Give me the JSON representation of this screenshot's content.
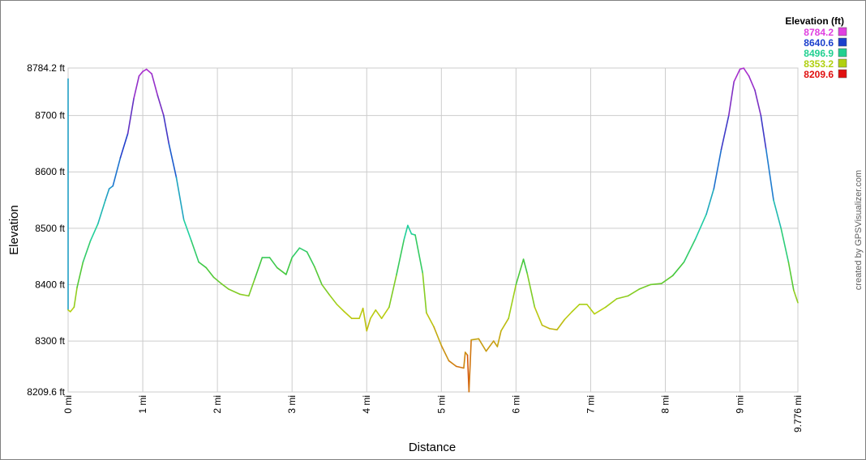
{
  "chart_data": {
    "type": "line",
    "xlabel": "Distance",
    "ylabel": "Elevation",
    "xlim": [
      0,
      9.776
    ],
    "ylim": [
      8209.6,
      8784.2
    ],
    "grid": true,
    "y_ticks": [
      {
        "value": 8209.6,
        "label": "8209.6 ft"
      },
      {
        "value": 8300,
        "label": "8300 ft"
      },
      {
        "value": 8400,
        "label": "8400 ft"
      },
      {
        "value": 8500,
        "label": "8500 ft"
      },
      {
        "value": 8600,
        "label": "8600 ft"
      },
      {
        "value": 8700,
        "label": "8700 ft"
      },
      {
        "value": 8784.2,
        "label": "8784.2 ft"
      }
    ],
    "x_ticks": [
      {
        "value": 0,
        "label": "0 mi"
      },
      {
        "value": 1,
        "label": "1 mi"
      },
      {
        "value": 2,
        "label": "2 mi"
      },
      {
        "value": 3,
        "label": "3 mi"
      },
      {
        "value": 4,
        "label": "4 mi"
      },
      {
        "value": 5,
        "label": "5 mi"
      },
      {
        "value": 6,
        "label": "6 mi"
      },
      {
        "value": 7,
        "label": "7 mi"
      },
      {
        "value": 8,
        "label": "8 mi"
      },
      {
        "value": 9,
        "label": "9 mi"
      },
      {
        "value": 9.776,
        "label": "9.776 mi"
      }
    ],
    "legend": {
      "title": "Elevation (ft)",
      "placement": "top-right",
      "entries": [
        {
          "label": "8784.2",
          "color": "#e040e0"
        },
        {
          "label": "8640.6",
          "color": "#1a3fcc"
        },
        {
          "label": "8496.9",
          "color": "#20d090"
        },
        {
          "label": "8353.2",
          "color": "#b0d010"
        },
        {
          "label": "8209.6",
          "color": "#e01010"
        }
      ]
    },
    "color_stops": [
      {
        "value": 8209.6,
        "color": "#e01010"
      },
      {
        "value": 8260,
        "color": "#d08010"
      },
      {
        "value": 8353.2,
        "color": "#b8d010"
      },
      {
        "value": 8430,
        "color": "#40c840"
      },
      {
        "value": 8496.9,
        "color": "#20d0a0"
      },
      {
        "value": 8580,
        "color": "#2090d0"
      },
      {
        "value": 8640.6,
        "color": "#1a3fcc"
      },
      {
        "value": 8710,
        "color": "#7030c0"
      },
      {
        "value": 8784.2,
        "color": "#b030d0"
      }
    ],
    "series": [
      {
        "points": [
          [
            0,
            8765
          ],
          [
            0,
            8355
          ],
          [
            0.03,
            8352
          ],
          [
            0.08,
            8360
          ],
          [
            0.12,
            8395
          ],
          [
            0.2,
            8440
          ],
          [
            0.3,
            8478
          ],
          [
            0.4,
            8508
          ],
          [
            0.5,
            8550
          ],
          [
            0.55,
            8570
          ],
          [
            0.6,
            8575
          ],
          [
            0.7,
            8625
          ],
          [
            0.8,
            8668
          ],
          [
            0.88,
            8730
          ],
          [
            0.95,
            8770
          ],
          [
            1.0,
            8778
          ],
          [
            1.05,
            8782
          ],
          [
            1.12,
            8774
          ],
          [
            1.2,
            8735
          ],
          [
            1.28,
            8700
          ],
          [
            1.35,
            8650
          ],
          [
            1.45,
            8590
          ],
          [
            1.55,
            8515
          ],
          [
            1.65,
            8478
          ],
          [
            1.75,
            8440
          ],
          [
            1.85,
            8430
          ],
          [
            1.95,
            8413
          ],
          [
            2.05,
            8402
          ],
          [
            2.15,
            8392
          ],
          [
            2.3,
            8383
          ],
          [
            2.42,
            8380
          ],
          [
            2.5,
            8410
          ],
          [
            2.6,
            8448
          ],
          [
            2.7,
            8448
          ],
          [
            2.8,
            8430
          ],
          [
            2.92,
            8418
          ],
          [
            3.0,
            8448
          ],
          [
            3.1,
            8465
          ],
          [
            3.2,
            8458
          ],
          [
            3.3,
            8432
          ],
          [
            3.4,
            8400
          ],
          [
            3.5,
            8382
          ],
          [
            3.6,
            8365
          ],
          [
            3.7,
            8352
          ],
          [
            3.8,
            8340
          ],
          [
            3.9,
            8340
          ],
          [
            3.95,
            8358
          ],
          [
            4.0,
            8318
          ],
          [
            4.05,
            8340
          ],
          [
            4.12,
            8355
          ],
          [
            4.2,
            8340
          ],
          [
            4.3,
            8360
          ],
          [
            4.4,
            8418
          ],
          [
            4.5,
            8480
          ],
          [
            4.55,
            8505
          ],
          [
            4.6,
            8490
          ],
          [
            4.65,
            8488
          ],
          [
            4.75,
            8420
          ],
          [
            4.8,
            8350
          ],
          [
            4.9,
            8325
          ],
          [
            5.0,
            8292
          ],
          [
            5.1,
            8265
          ],
          [
            5.2,
            8255
          ],
          [
            5.3,
            8252
          ],
          [
            5.32,
            8280
          ],
          [
            5.35,
            8275
          ],
          [
            5.37,
            8210
          ],
          [
            5.4,
            8302
          ],
          [
            5.5,
            8304
          ],
          [
            5.6,
            8282
          ],
          [
            5.7,
            8300
          ],
          [
            5.75,
            8290
          ],
          [
            5.8,
            8318
          ],
          [
            5.9,
            8340
          ],
          [
            6.0,
            8400
          ],
          [
            6.1,
            8445
          ],
          [
            6.15,
            8420
          ],
          [
            6.25,
            8360
          ],
          [
            6.35,
            8328
          ],
          [
            6.45,
            8322
          ],
          [
            6.55,
            8320
          ],
          [
            6.65,
            8338
          ],
          [
            6.75,
            8352
          ],
          [
            6.85,
            8365
          ],
          [
            6.95,
            8365
          ],
          [
            7.05,
            8348
          ],
          [
            7.2,
            8360
          ],
          [
            7.35,
            8375
          ],
          [
            7.5,
            8380
          ],
          [
            7.65,
            8392
          ],
          [
            7.8,
            8400
          ],
          [
            7.95,
            8402
          ],
          [
            8.1,
            8416
          ],
          [
            8.25,
            8440
          ],
          [
            8.4,
            8480
          ],
          [
            8.55,
            8525
          ],
          [
            8.65,
            8570
          ],
          [
            8.75,
            8640
          ],
          [
            8.85,
            8700
          ],
          [
            8.92,
            8760
          ],
          [
            9.0,
            8782
          ],
          [
            9.05,
            8784
          ],
          [
            9.12,
            8770
          ],
          [
            9.2,
            8745
          ],
          [
            9.28,
            8700
          ],
          [
            9.35,
            8640
          ],
          [
            9.45,
            8550
          ],
          [
            9.55,
            8500
          ],
          [
            9.65,
            8440
          ],
          [
            9.72,
            8390
          ],
          [
            9.776,
            8368
          ]
        ]
      }
    ]
  },
  "credit": "created by GPSVisualizer.com"
}
